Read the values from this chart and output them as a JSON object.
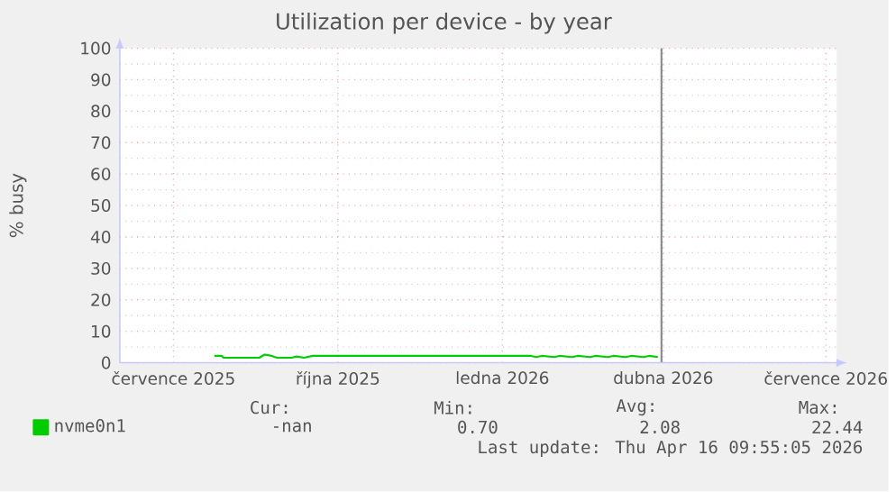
{
  "chart_data": {
    "type": "line",
    "title": "Utilization per device - by year",
    "ylabel": "% busy",
    "xlim": [
      "2025-06-01",
      "2026-07-07"
    ],
    "ylim": [
      0,
      100
    ],
    "xticks": [
      {
        "value": "2025-07-01",
        "label": "července 2025"
      },
      {
        "value": "2025-10-01",
        "label": "října 2025"
      },
      {
        "value": "2026-01-01",
        "label": "ledna 2026"
      },
      {
        "value": "2026-04-01",
        "label": "dubna 2026"
      },
      {
        "value": "2026-07-01",
        "label": "července 2026"
      }
    ],
    "yticks": [
      0,
      10,
      20,
      30,
      40,
      50,
      60,
      70,
      80,
      90,
      100
    ],
    "grid": true,
    "legend": "bottom left",
    "ref_lines": [
      {
        "axis": "x",
        "value": "2026-03-31",
        "color": "#888888"
      }
    ],
    "series": [
      {
        "name": "nvme0n1",
        "color": "#00cc00",
        "x": [
          "2025-07-24",
          "2025-07-28",
          "2025-07-29",
          "2025-08-18",
          "2025-08-21",
          "2025-08-25",
          "2025-08-28",
          "2025-09-05",
          "2025-09-08",
          "2025-09-12",
          "2025-09-17",
          "2026-01-17",
          "2026-01-20",
          "2026-01-23",
          "2026-01-30",
          "2026-02-02",
          "2026-02-09",
          "2026-02-12",
          "2026-02-19",
          "2026-02-22",
          "2026-03-01",
          "2026-03-04",
          "2026-03-11",
          "2026-03-14",
          "2026-03-21",
          "2026-03-24",
          "2026-03-29"
        ],
        "values": [
          2.2,
          2.2,
          1.6,
          1.6,
          2.6,
          2.2,
          1.6,
          1.6,
          2.0,
          1.6,
          2.2,
          2.2,
          1.8,
          2.2,
          1.8,
          2.2,
          1.8,
          2.2,
          1.8,
          2.2,
          1.8,
          2.2,
          1.8,
          2.2,
          1.8,
          2.2,
          1.8
        ]
      }
    ],
    "annotations": [
      "Cur:",
      "Min:",
      "Avg:",
      "Max:",
      "-nan",
      "0.70",
      "2.08",
      "22.44",
      "Last update: Thu Apr 16 09:55:05 2026"
    ]
  }
}
